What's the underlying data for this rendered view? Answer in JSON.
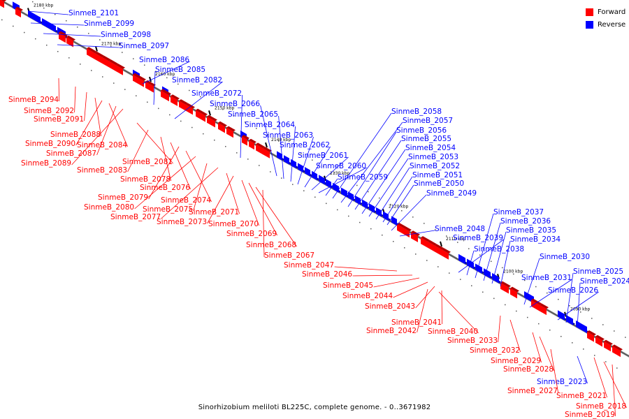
{
  "legend": {
    "items": [
      {
        "label": "Forward",
        "color": "#ff0000"
      },
      {
        "label": "Reverse",
        "color": "#0000ff"
      }
    ]
  },
  "caption": "Sinorhizobium meliloti BL225C, complete genome. - 0..3671982",
  "colors": {
    "forward": "#ff0000",
    "reverse": "#0000ff",
    "forward_dark": "#b30000",
    "reverse_dark": "#0000a0",
    "backbone": "#888888"
  },
  "ticks": [
    "2180 kbp",
    "2170 kbp",
    "2160 kbp",
    "2150 kbp",
    "2140 kbp",
    "2130 kbp",
    "2120 kbp",
    "2110 kbp",
    "2100 kbp",
    "2090 kbp"
  ],
  "reverse_labels": [
    "SinmeB_2101",
    "SinmeB_2099",
    "SinmeB_2098",
    "SinmeB_2097",
    "SinmeB_2086",
    "SinmeB_2085",
    "SinmeB_2082",
    "SinmeB_2072",
    "SinmeB_2066",
    "SinmeB_2065",
    "SinmeB_2064",
    "SinmeB_2063",
    "SinmeB_2062",
    "SinmeB_2061",
    "SinmeB_2060",
    "SinmeB_2059",
    "SinmeB_2058",
    "SinmeB_2057",
    "SinmeB_2056",
    "SinmeB_2055",
    "SinmeB_2054",
    "SinmeB_2053",
    "SinmeB_2052",
    "SinmeB_2051",
    "SinmeB_2050",
    "SinmeB_2049",
    "SinmeB_2048",
    "SinmeB_2039",
    "SinmeB_2038",
    "SinmeB_2037",
    "SinmeB_2036",
    "SinmeB_2035",
    "SinmeB_2034",
    "SinmeB_2030",
    "SinmeB_2031",
    "SinmeB_2026",
    "SinmeB_2025",
    "SinmeB_2024",
    "SinmeB_2023"
  ],
  "forward_labels": [
    "SinmeB_2094",
    "SinmeB_2092",
    "SinmeB_2091",
    "SinmeB_2088",
    "SinmeB_2090",
    "SinmeB_2084",
    "SinmeB_2087",
    "SinmeB_2089",
    "SinmeB_2081",
    "SinmeB_2083",
    "SinmeB_2078",
    "SinmeB_2076",
    "SinmeB_2079",
    "SinmeB_2074",
    "SinmeB_2080",
    "SinmeB_2075",
    "SinmeB_2077",
    "SinmeB_2071",
    "SinmeB_2073",
    "SinmeB_2070",
    "SinmeB_2069",
    "SinmeB_2068",
    "SinmeB_2067",
    "SinmeB_2047",
    "SinmeB_2046",
    "SinmeB_2045",
    "SinmeB_2044",
    "SinmeB_2043",
    "SinmeB_2041",
    "SinmeB_2040",
    "SinmeB_2042",
    "SinmeB_2033",
    "SinmeB_2032",
    "SinmeB_2029",
    "SinmeB_2028",
    "SinmeB_2027",
    "SinmeB_2021",
    "SinmeB_2018",
    "SinmeB_2019"
  ]
}
